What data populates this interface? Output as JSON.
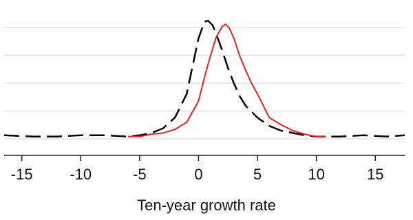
{
  "chart_data": {
    "type": "line",
    "title": "",
    "xlabel": "Ten-year growth rate",
    "ylabel": "",
    "xlim": [
      -16.5,
      17.5
    ],
    "ylim": [
      0,
      1
    ],
    "grid": true,
    "xticks": [
      -15,
      -10,
      -5,
      0,
      5,
      10,
      15
    ],
    "xtick_labels": [
      "-15",
      "-10",
      "-5",
      "0",
      "5",
      "10",
      "15"
    ],
    "series": [
      {
        "style": "dashed",
        "color": "#000000",
        "points": [
          [
            -16.5,
            0.03
          ],
          [
            -14,
            0.02
          ],
          [
            -12,
            0.02
          ],
          [
            -10,
            0.03
          ],
          [
            -8,
            0.03
          ],
          [
            -6,
            0.02
          ],
          [
            -5,
            0.03
          ],
          [
            -4,
            0.05
          ],
          [
            -3,
            0.09
          ],
          [
            -2,
            0.18
          ],
          [
            -1,
            0.38
          ],
          [
            -0.5,
            0.62
          ],
          [
            0,
            0.85
          ],
          [
            0.5,
            0.99
          ],
          [
            0.8,
            1.0
          ],
          [
            1.2,
            0.96
          ],
          [
            1.6,
            0.86
          ],
          [
            2,
            0.75
          ],
          [
            2.5,
            0.6
          ],
          [
            3,
            0.47
          ],
          [
            3.5,
            0.36
          ],
          [
            4,
            0.28
          ],
          [
            5,
            0.18
          ],
          [
            6,
            0.11
          ],
          [
            7,
            0.07
          ],
          [
            8,
            0.05
          ],
          [
            9,
            0.03
          ],
          [
            10,
            0.02
          ],
          [
            12,
            0.02
          ],
          [
            14,
            0.03
          ],
          [
            16,
            0.02
          ],
          [
            17.5,
            0.03
          ]
        ]
      },
      {
        "style": "solid",
        "color": "#e8231f",
        "points": [
          [
            -6,
            0.02
          ],
          [
            -5,
            0.02
          ],
          [
            -4,
            0.04
          ],
          [
            -3,
            0.05
          ],
          [
            -2,
            0.08
          ],
          [
            -1,
            0.14
          ],
          [
            0,
            0.32
          ],
          [
            0.5,
            0.52
          ],
          [
            1,
            0.7
          ],
          [
            1.5,
            0.86
          ],
          [
            2,
            0.95
          ],
          [
            2.3,
            0.97
          ],
          [
            2.6,
            0.94
          ],
          [
            3,
            0.85
          ],
          [
            3.5,
            0.7
          ],
          [
            4,
            0.58
          ],
          [
            4.5,
            0.47
          ],
          [
            5,
            0.38
          ],
          [
            5.5,
            0.28
          ],
          [
            6,
            0.18
          ],
          [
            7,
            0.12
          ],
          [
            8,
            0.07
          ],
          [
            9,
            0.04
          ],
          [
            10,
            0.02
          ],
          [
            10.8,
            0.02
          ]
        ]
      }
    ]
  }
}
